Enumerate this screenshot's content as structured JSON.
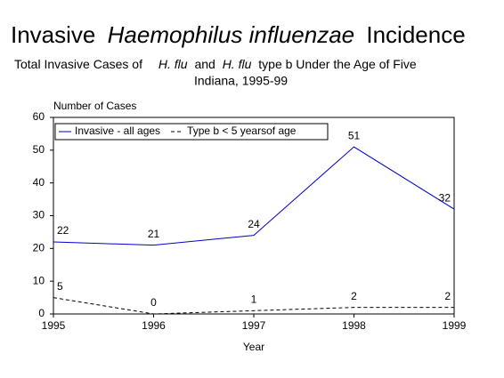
{
  "chart_data": {
    "type": "line",
    "title": [
      "Invasive",
      "Haemophilus influenzae",
      "Incidence"
    ],
    "subtitle": [
      "Total Invasive Cases of",
      "H. flu",
      "and",
      "H. flu",
      "type b Under the Age of Five",
      "Indiana, 1995-99"
    ],
    "y_label": "Number of Cases",
    "x_label": "Year",
    "x": [
      1995,
      1996,
      1997,
      1998,
      1999
    ],
    "series": [
      {
        "name": "Invasive - all ages",
        "color": "#0000cc",
        "dashed": false,
        "values": [
          22,
          21,
          24,
          51,
          32
        ]
      },
      {
        "name": "Type b < 5 yearsof age",
        "color": "#000000",
        "dashed": true,
        "values": [
          5,
          0,
          1,
          2,
          2
        ]
      }
    ],
    "xlim": [
      1995,
      1999
    ],
    "xticks": [
      1995,
      1996,
      1997,
      1998,
      1999
    ],
    "ylim": [
      0,
      60
    ],
    "yticks": [
      0,
      10,
      20,
      30,
      40,
      50,
      60
    ],
    "grid": false,
    "legend": "top-left",
    "data_labels": true
  }
}
